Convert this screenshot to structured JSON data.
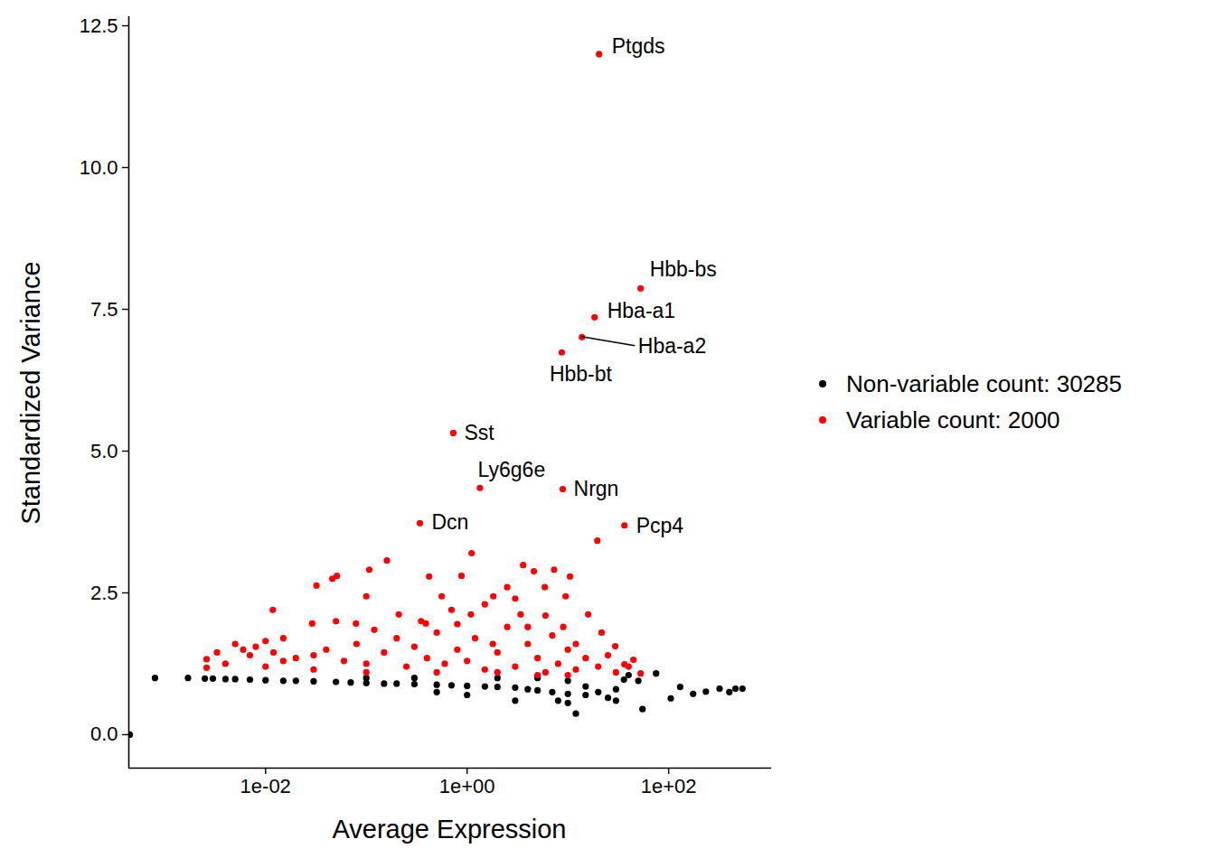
{
  "chart_data": {
    "type": "scatter",
    "x_label": "Average Expression",
    "y_label": "Standardized Variance",
    "log": "x",
    "grid": false,
    "legend": "right",
    "xlim": [
      0.00044,
      1050
    ],
    "xticks": [
      {
        "value": 0.01,
        "label": "1e-02"
      },
      {
        "value": 1,
        "label": "1e+00"
      },
      {
        "value": 100,
        "label": "1e+02"
      }
    ],
    "ylim": [
      -0.59,
      12.66
    ],
    "yticks": [
      {
        "value": 0,
        "label": "0.0"
      },
      {
        "value": 2.5,
        "label": "2.5"
      },
      {
        "value": 5,
        "label": "5.0"
      },
      {
        "value": 7.5,
        "label": "7.5"
      },
      {
        "value": 10,
        "label": "10.0"
      },
      {
        "value": 12.5,
        "label": "12.5"
      }
    ],
    "series": [
      {
        "name": "Non-variable count: 30285",
        "color": "#000000",
        "values": [
          [
            0.00045,
            0.0
          ],
          [
            0.0008,
            1.0
          ],
          [
            0.0017,
            1.0
          ],
          [
            0.0025,
            0.99
          ],
          [
            0.003,
            0.99
          ],
          [
            0.004,
            0.98
          ],
          [
            0.005,
            0.98
          ],
          [
            0.007,
            0.97
          ],
          [
            0.01,
            0.96
          ],
          [
            0.015,
            0.95
          ],
          [
            0.02,
            0.95
          ],
          [
            0.03,
            0.94
          ],
          [
            0.05,
            0.93
          ],
          [
            0.07,
            0.92
          ],
          [
            0.1,
            0.91
          ],
          [
            0.15,
            0.9
          ],
          [
            0.2,
            0.9
          ],
          [
            0.3,
            0.89
          ],
          [
            0.5,
            0.88
          ],
          [
            0.7,
            0.87
          ],
          [
            1,
            0.86
          ],
          [
            1.5,
            0.85
          ],
          [
            2,
            0.84
          ],
          [
            3,
            0.83
          ],
          [
            4,
            0.8
          ],
          [
            5,
            0.78
          ],
          [
            7,
            0.75
          ],
          [
            10,
            0.72
          ],
          [
            15,
            0.7
          ],
          [
            20,
            0.75
          ],
          [
            30,
            0.8
          ],
          [
            40,
            1.05
          ],
          [
            50,
            0.95
          ],
          [
            55,
            0.45
          ],
          [
            12,
            0.37
          ],
          [
            10,
            0.56
          ],
          [
            105,
            0.64
          ],
          [
            130,
            0.84
          ],
          [
            175,
            0.72
          ],
          [
            234,
            0.76
          ],
          [
            320,
            0.81
          ],
          [
            400,
            0.75
          ],
          [
            460,
            0.81
          ],
          [
            540,
            0.81
          ],
          [
            75,
            1.08
          ],
          [
            36,
            0.97
          ],
          [
            3,
            0.6
          ],
          [
            8,
            0.6
          ],
          [
            1,
            0.7
          ],
          [
            0.5,
            0.75
          ],
          [
            10,
            0.95
          ],
          [
            5,
            1.0
          ],
          [
            2,
            1.0
          ],
          [
            0.3,
            1.0
          ],
          [
            0.1,
            1.0
          ],
          [
            15,
            0.85
          ],
          [
            30,
            0.6
          ],
          [
            25,
            0.65
          ]
        ]
      },
      {
        "name": "Variable count: 2000",
        "color": "#FF0000",
        "values": [
          [
            0.0026,
            1.33
          ],
          [
            0.0026,
            1.18
          ],
          [
            0.0033,
            1.45
          ],
          [
            0.005,
            1.6
          ],
          [
            0.006,
            1.5
          ],
          [
            0.008,
            1.55
          ],
          [
            0.01,
            1.65
          ],
          [
            0.012,
            1.45
          ],
          [
            0.015,
            1.3
          ],
          [
            0.0118,
            2.2
          ],
          [
            0.032,
            2.63
          ],
          [
            0.046,
            2.75
          ],
          [
            0.051,
            2.8
          ],
          [
            0.1,
            2.44
          ],
          [
            0.107,
            2.91
          ],
          [
            0.16,
            3.07
          ],
          [
            0.079,
            1.96
          ],
          [
            0.029,
            1.96
          ],
          [
            0.42,
            2.79
          ],
          [
            0.88,
            2.8
          ],
          [
            1.11,
            3.2
          ],
          [
            3.6,
            2.99
          ],
          [
            4.6,
            2.88
          ],
          [
            7.3,
            2.91
          ],
          [
            10.5,
            2.79
          ],
          [
            5.9,
            2.6
          ],
          [
            1.82,
            2.44
          ],
          [
            2.5,
            2.6
          ],
          [
            0.56,
            2.44
          ],
          [
            0.21,
            2.12
          ],
          [
            0.39,
            1.96
          ],
          [
            1.09,
            2.12
          ],
          [
            3.4,
            2.12
          ],
          [
            9.5,
            2.44
          ],
          [
            19.6,
            3.42
          ],
          [
            15.9,
            2.12
          ],
          [
            21.6,
            1.8
          ],
          [
            29.5,
            1.56
          ],
          [
            44.7,
            1.32
          ],
          [
            52.7,
            1.08
          ],
          [
            36.4,
            1.24
          ],
          [
            0.02,
            1.35
          ],
          [
            0.03,
            1.4
          ],
          [
            0.04,
            1.5
          ],
          [
            0.06,
            1.3
          ],
          [
            0.08,
            1.6
          ],
          [
            0.1,
            1.25
          ],
          [
            0.15,
            1.45
          ],
          [
            0.2,
            1.7
          ],
          [
            0.25,
            1.2
          ],
          [
            0.3,
            1.55
          ],
          [
            0.4,
            1.35
          ],
          [
            0.5,
            1.8
          ],
          [
            0.6,
            1.25
          ],
          [
            0.8,
            1.5
          ],
          [
            1,
            1.3
          ],
          [
            1.2,
            1.7
          ],
          [
            1.5,
            1.15
          ],
          [
            2,
            1.45
          ],
          [
            2.5,
            1.9
          ],
          [
            3,
            1.2
          ],
          [
            4,
            1.6
          ],
          [
            5,
            1.35
          ],
          [
            6,
            1.1
          ],
          [
            7,
            1.75
          ],
          [
            8,
            1.25
          ],
          [
            10,
            1.5
          ],
          [
            12,
            1.15
          ],
          [
            15,
            1.35
          ],
          [
            20,
            1.2
          ],
          [
            25,
            1.4
          ],
          [
            30,
            1.1
          ],
          [
            40,
            1.2
          ],
          [
            0.35,
            2.0
          ],
          [
            0.7,
            2.2
          ],
          [
            1.5,
            2.3
          ],
          [
            3,
            2.4
          ],
          [
            6,
            2.1
          ],
          [
            0.12,
            1.85
          ],
          [
            0.05,
            2.0
          ],
          [
            0.015,
            1.7
          ],
          [
            0.007,
            1.4
          ],
          [
            0.004,
            1.25
          ],
          [
            2,
            1.1
          ],
          [
            5,
            1.05
          ],
          [
            10,
            1.05
          ],
          [
            0.5,
            1.1
          ],
          [
            0.1,
            1.1
          ],
          [
            0.03,
            1.15
          ],
          [
            0.01,
            1.2
          ],
          [
            0.8,
            1.95
          ],
          [
            1.8,
            1.6
          ],
          [
            4,
            1.9
          ],
          [
            9,
            1.9
          ],
          [
            12,
            1.6
          ],
          [
            20.4,
            12.0
          ],
          [
            52.7,
            7.87
          ],
          [
            18.4,
            7.36
          ],
          [
            13.8,
            7.01
          ],
          [
            8.7,
            6.74
          ],
          [
            0.73,
            5.32
          ],
          [
            1.34,
            4.35
          ],
          [
            8.9,
            4.33
          ],
          [
            0.34,
            3.73
          ],
          [
            36.4,
            3.69
          ]
        ]
      }
    ],
    "annotations": [
      {
        "text": "Ptgds",
        "x": 20.4,
        "y": 12.0
      },
      {
        "text": "Hbb-bs",
        "x": 52.7,
        "y": 7.87
      },
      {
        "text": "Hba-a1",
        "x": 18.4,
        "y": 7.36
      },
      {
        "text": "Hba-a2",
        "x": 13.8,
        "y": 7.01
      },
      {
        "text": "Hbb-bt",
        "x": 8.7,
        "y": 6.74
      },
      {
        "text": "Sst",
        "x": 0.73,
        "y": 5.32
      },
      {
        "text": "Ly6g6e",
        "x": 1.34,
        "y": 4.35
      },
      {
        "text": "Nrgn",
        "x": 8.9,
        "y": 4.33
      },
      {
        "text": "Dcn",
        "x": 0.34,
        "y": 3.73
      },
      {
        "text": "Pcp4",
        "x": 36.4,
        "y": 3.69
      }
    ]
  }
}
